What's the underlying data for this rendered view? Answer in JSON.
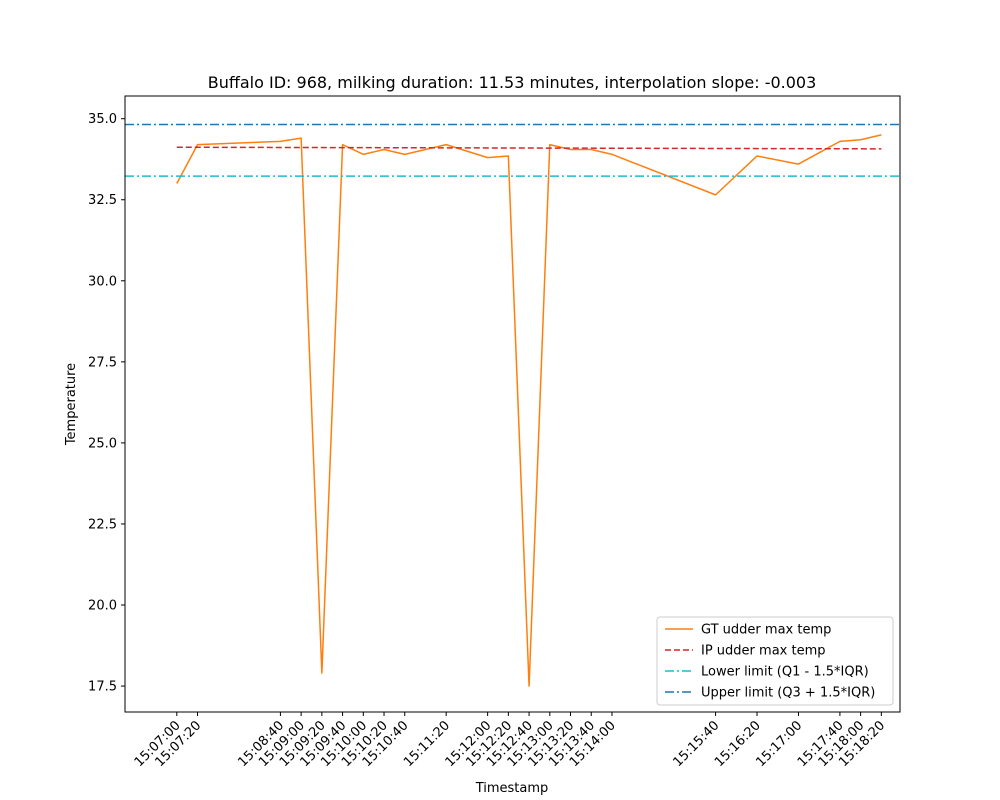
{
  "chart_data": {
    "type": "line",
    "title": "Buffalo ID: 968, milking duration: 11.53 minutes, interpolation slope: -0.003",
    "xlabel": "Timestamp",
    "ylabel": "Temperature",
    "ylim": [
      16.7,
      35.7
    ],
    "yticks": [
      17.5,
      20.0,
      22.5,
      25.0,
      27.5,
      30.0,
      32.5,
      35.0
    ],
    "ytick_labels": [
      "17.5",
      "20.0",
      "22.5",
      "25.0",
      "27.5",
      "30.0",
      "32.5",
      "35.0"
    ],
    "xlim": [
      "15:06:10",
      "15:18:38"
    ],
    "x_ticks": [
      "15:07:00",
      "15:07:20",
      "15:08:40",
      "15:09:00",
      "15:09:20",
      "15:09:40",
      "15:10:00",
      "15:10:20",
      "15:10:40",
      "15:11:20",
      "15:12:00",
      "15:12:20",
      "15:12:40",
      "15:13:00",
      "15:13:20",
      "15:13:40",
      "15:14:00",
      "15:15:40",
      "15:16:20",
      "15:17:00",
      "15:17:40",
      "15:18:00",
      "15:18:20"
    ],
    "grid": false,
    "legend_position": "lower-right",
    "series": [
      {
        "name": "GT udder max temp",
        "style": "solid",
        "color": "#ff7f0e",
        "x": [
          "15:07:00",
          "15:07:20",
          "15:08:40",
          "15:09:00",
          "15:09:20",
          "15:09:40",
          "15:10:00",
          "15:10:20",
          "15:10:40",
          "15:11:20",
          "15:12:00",
          "15:12:20",
          "15:12:40",
          "15:13:00",
          "15:13:20",
          "15:13:40",
          "15:14:00",
          "15:15:40",
          "15:16:20",
          "15:17:00",
          "15:17:40",
          "15:18:00",
          "15:18:20"
        ],
        "y": [
          33.0,
          34.2,
          34.3,
          34.4,
          17.9,
          34.2,
          33.9,
          34.05,
          33.9,
          34.2,
          33.8,
          33.85,
          17.5,
          34.2,
          34.05,
          34.05,
          33.9,
          32.65,
          33.85,
          33.6,
          34.3,
          34.35,
          34.5
        ]
      },
      {
        "name": "IP udder max temp",
        "style": "dashed",
        "color": "#d62728",
        "x": [
          "15:07:00",
          "15:18:20"
        ],
        "y": [
          34.12,
          34.07
        ]
      },
      {
        "name": "Lower limit (Q1 - 1.5*IQR)",
        "style": "dashdot",
        "color": "#17becf",
        "horizontal": true,
        "y": 33.23
      },
      {
        "name": "Upper limit (Q3 + 1.5*IQR)",
        "style": "dashdot",
        "color": "#1f77b4",
        "horizontal": true,
        "y": 34.82
      }
    ]
  }
}
